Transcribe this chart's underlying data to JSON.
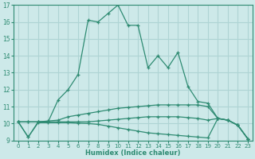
{
  "x": [
    0,
    1,
    2,
    3,
    4,
    5,
    6,
    7,
    8,
    9,
    10,
    11,
    12,
    13,
    14,
    15,
    16,
    17,
    18,
    19,
    20,
    21,
    22,
    23
  ],
  "line_main": [
    10.1,
    9.2,
    10.1,
    10.1,
    11.4,
    12.0,
    12.9,
    16.1,
    16.0,
    16.5,
    17.0,
    15.8,
    15.8,
    13.3,
    14.0,
    13.3,
    14.2,
    12.2,
    11.3,
    11.2,
    10.3,
    10.2,
    9.9,
    9.1
  ],
  "line_upper_flat": [
    10.1,
    10.1,
    10.1,
    10.15,
    10.2,
    10.4,
    10.5,
    10.6,
    10.7,
    10.8,
    10.9,
    10.95,
    11.0,
    11.05,
    11.1,
    11.1,
    11.1,
    11.1,
    11.1,
    11.0,
    10.3,
    10.2,
    9.9,
    9.1
  ],
  "line_mid_flat": [
    10.1,
    10.1,
    10.1,
    10.1,
    10.1,
    10.1,
    10.1,
    10.1,
    10.15,
    10.2,
    10.25,
    10.3,
    10.35,
    10.4,
    10.4,
    10.4,
    10.4,
    10.35,
    10.3,
    10.2,
    10.3,
    10.2,
    9.9,
    9.1
  ],
  "line_lower_flat": [
    10.1,
    9.2,
    10.05,
    10.05,
    10.05,
    10.05,
    10.02,
    10.0,
    9.95,
    9.85,
    9.75,
    9.65,
    9.55,
    9.45,
    9.4,
    9.35,
    9.3,
    9.25,
    9.2,
    9.15,
    10.3,
    10.2,
    9.9,
    9.1
  ],
  "color": "#2e8b72",
  "bg_color": "#cde9e9",
  "grid_color": "#aed4d4",
  "xlabel": "Humidex (Indice chaleur)",
  "ylim": [
    9,
    17
  ],
  "xlim": [
    -0.5,
    23.5
  ],
  "yticks": [
    9,
    10,
    11,
    12,
    13,
    14,
    15,
    16,
    17
  ],
  "xticks": [
    0,
    1,
    2,
    3,
    4,
    5,
    6,
    7,
    8,
    9,
    10,
    11,
    12,
    13,
    14,
    15,
    16,
    17,
    18,
    19,
    20,
    21,
    22,
    23
  ]
}
